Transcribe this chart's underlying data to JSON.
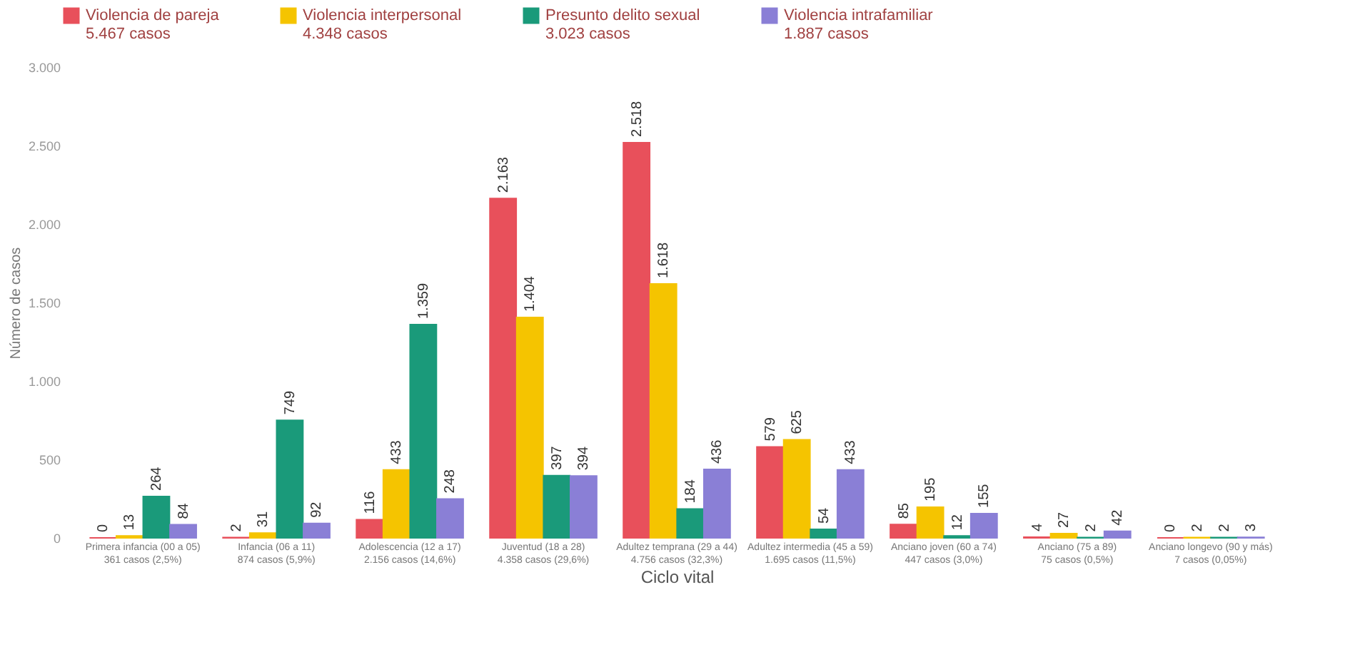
{
  "chart_data": {
    "type": "bar",
    "xlabel": "Ciclo vital",
    "ylabel": "Número de casos",
    "categories": [
      "Primera infancia (00 a 05)\n361 casos (2,5%)",
      "Infancia (06 a 11)\n874 casos (5,9%)",
      "Adolescencia (12 a 17)\n2.156 casos (14,6%)",
      "Juventud (18 a 28)\n4.358 casos (29,6%)",
      "Adultez temprana (29 a 44)\n4.756 casos (32,3%)",
      "Adultez intermedia (45 a 59)\n1.695 casos (11,5%)",
      "Anciano joven (60 a 74)\n447 casos (3,0%)",
      "Anciano (75 a 89)\n75 casos (0,5%)",
      "Anciano longevo (90 y más)\n7 casos (0,05%)"
    ],
    "series": [
      {
        "name": "Violencia de pareja\n5.467 casos",
        "color": "#e8505b",
        "values": [
          0,
          2,
          116,
          2163,
          2518,
          579,
          85,
          4,
          0
        ],
        "value_labels": [
          "0",
          "2",
          "116",
          "2.163",
          "2.518",
          "579",
          "85",
          "4",
          "0"
        ]
      },
      {
        "name": "Violencia interpersonal\n4.348 casos",
        "color": "#f5c400",
        "values": [
          13,
          31,
          433,
          1404,
          1618,
          625,
          195,
          27,
          2
        ],
        "value_labels": [
          "13",
          "31",
          "433",
          "1.404",
          "1.618",
          "625",
          "195",
          "27",
          "2"
        ]
      },
      {
        "name": "Presunto delito sexual\n3.023 casos",
        "color": "#1a9a7a",
        "values": [
          264,
          749,
          1359,
          397,
          184,
          54,
          12,
          2,
          2
        ],
        "value_labels": [
          "264",
          "749",
          "1.359",
          "397",
          "184",
          "54",
          "12",
          "2",
          "2"
        ]
      },
      {
        "name": "Violencia intrafamiliar\n1.887 casos",
        "color": "#8a7fd6",
        "values": [
          84,
          92,
          248,
          394,
          436,
          433,
          155,
          42,
          3
        ],
        "value_labels": [
          "84",
          "92",
          "248",
          "394",
          "436",
          "433",
          "155",
          "42",
          "3"
        ]
      }
    ],
    "ylim": [
      0,
      3000
    ],
    "yticks": [
      0,
      500,
      {
        "value": 1000,
        "label": "1.000"
      },
      {
        "value": 1500,
        "label": "1.500"
      },
      {
        "value": 2000,
        "label": "2.000"
      },
      {
        "value": 2500,
        "label": "2.500"
      },
      {
        "value": 3000,
        "label": "3.000"
      }
    ],
    "grid": false,
    "legend": "top"
  }
}
